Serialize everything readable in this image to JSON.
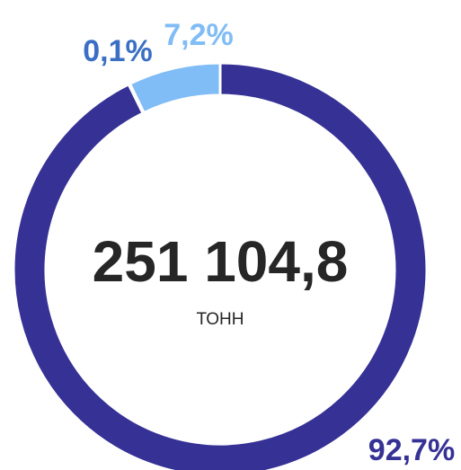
{
  "chart_data": {
    "type": "donut",
    "values": [
      92.7,
      0.1,
      7.2
    ],
    "value_labels": [
      "92,7%",
      "0,1%",
      "7,2%"
    ],
    "colors": [
      "#363195",
      "#3b6fc4",
      "#80bcf6"
    ],
    "center_value": "251 104,8",
    "center_label": "ТОНН"
  }
}
